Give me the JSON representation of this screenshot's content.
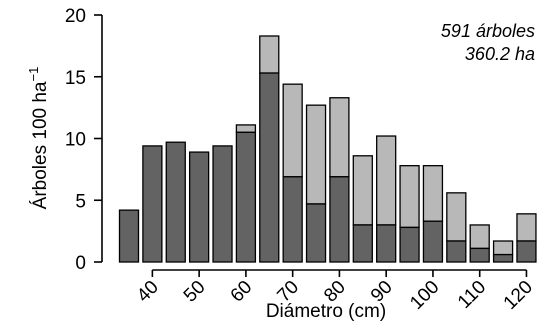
{
  "chart_data": {
    "type": "bar",
    "stacked": true,
    "x": [
      35,
      40,
      45,
      50,
      55,
      60,
      65,
      70,
      75,
      80,
      85,
      90,
      95,
      100,
      105,
      110,
      115,
      120
    ],
    "series": [
      {
        "values": [
          4.2,
          9.4,
          9.7,
          8.9,
          9.4,
          10.5,
          15.3,
          6.9,
          4.7,
          6.9,
          3.0,
          3.0,
          2.8,
          3.3,
          1.7,
          1.1,
          0.6,
          1.7
        ],
        "color": "#636363"
      },
      {
        "values": [
          0.0,
          0.0,
          0.0,
          0.0,
          0.0,
          0.6,
          3.0,
          7.5,
          8.0,
          6.4,
          5.6,
          7.2,
          5.0,
          4.5,
          3.9,
          1.9,
          1.1,
          2.2
        ],
        "color": "#b8b8b8"
      }
    ],
    "xlabel": "Diámetro (cm)",
    "ylabel_main": "Árboles 100 ha",
    "ylabel_sup": "−1",
    "ylim": [
      0,
      20
    ],
    "yticks": [
      0,
      5,
      10,
      15,
      20
    ],
    "xtick_labels": [
      "40",
      "50",
      "60",
      "70",
      "80",
      "90",
      "100",
      "110",
      "120"
    ],
    "grid": false,
    "legend": "none",
    "annotations": [
      "591 árboles",
      "360.2 ha"
    ]
  }
}
